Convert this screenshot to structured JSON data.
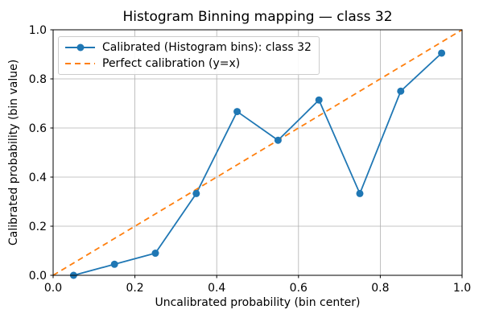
{
  "chart_data": {
    "type": "line",
    "title": "Histogram Binning mapping — class 32",
    "xlabel": "Uncalibrated probability (bin center)",
    "ylabel": "Calibrated probability (bin value)",
    "xlim": [
      0.0,
      1.0
    ],
    "ylim": [
      0.0,
      1.0
    ],
    "xticks": [
      0.0,
      0.2,
      0.4,
      0.6,
      0.8,
      1.0
    ],
    "xtick_labels": [
      "0.0",
      "0.2",
      "0.4",
      "0.6",
      "0.8",
      "1.0"
    ],
    "yticks": [
      0.0,
      0.2,
      0.4,
      0.6,
      0.8,
      1.0
    ],
    "ytick_labels": [
      "0.0",
      "0.2",
      "0.4",
      "0.6",
      "0.8",
      "1.0"
    ],
    "grid": true,
    "grid_color": "#b0b0b0",
    "spine_color": "#000000",
    "legend_position": "upper left",
    "series": [
      {
        "name": "Calibrated (Histogram bins): class 32",
        "style": "solid-line-circle-markers",
        "color": "#1f77b4",
        "x": [
          0.05,
          0.15,
          0.25,
          0.35,
          0.45,
          0.55,
          0.65,
          0.75,
          0.85,
          0.95
        ],
        "y": [
          0.0,
          0.045,
          0.09,
          0.333,
          0.667,
          0.55,
          0.714,
          0.333,
          0.75,
          0.905
        ]
      },
      {
        "name": "Perfect calibration (y=x)",
        "style": "dashed-line",
        "color": "#ff7f0e",
        "x": [
          0.0,
          1.0
        ],
        "y": [
          0.0,
          1.0
        ]
      }
    ]
  }
}
